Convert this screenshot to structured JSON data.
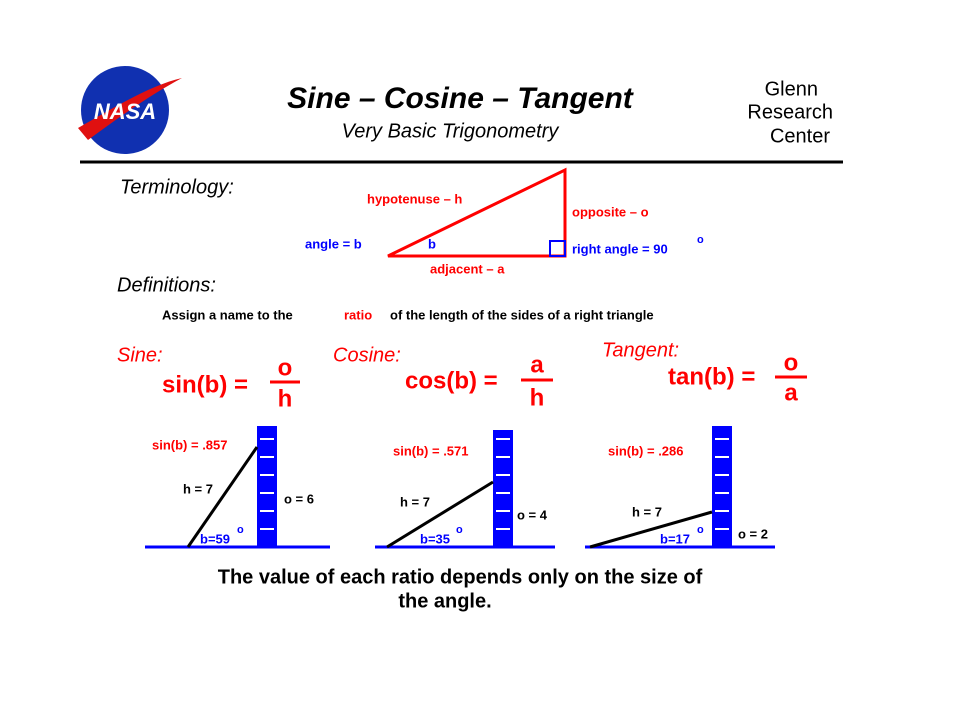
{
  "header": {
    "logo": "NASA",
    "title": "Sine – Cosine – Tangent",
    "subtitle": "Very Basic Trigonometry",
    "org": [
      "Glenn",
      "Research",
      "Center"
    ]
  },
  "terminology": {
    "heading": "Terminology:",
    "hypotenuse": "hypotenuse – h",
    "opposite": "opposite – o",
    "adjacent": "adjacent – a",
    "angle": "angle = b",
    "angle_mark": "b",
    "right_angle": "right  angle = 90",
    "degree": "o"
  },
  "definitions": {
    "heading": "Definitions:",
    "sentence": [
      "Assign  a  name  to  the",
      "ratio",
      "of  the  length  of  the  sides   of  a  right  triangle"
    ]
  },
  "functions": [
    {
      "name": "Sine:",
      "lhs": "sin(b) =",
      "numerator": "o",
      "denominator": "h",
      "example": {
        "label": "sin(b) = .857",
        "hyp": "h = 7",
        "opp": "o = 6",
        "angle": "b=59",
        "degree": "o"
      }
    },
    {
      "name": "Cosine:",
      "lhs": "cos(b) =",
      "numerator": "a",
      "denominator": "h",
      "example": {
        "label": "sin(b) = .571",
        "hyp": "h = 7",
        "opp": "o = 4",
        "angle": "b=35",
        "degree": "o"
      }
    },
    {
      "name": "Tangent:",
      "lhs": "tan(b) =",
      "numerator": "o",
      "denominator": "a",
      "example": {
        "label": "sin(b) = .286",
        "hyp": "h = 7",
        "opp": "o = 2",
        "angle": "b=17",
        "degree": "o"
      }
    }
  ],
  "footer": [
    "The  value  of  each  ratio  depends  only  on  the  size  of",
    "the  angle."
  ]
}
